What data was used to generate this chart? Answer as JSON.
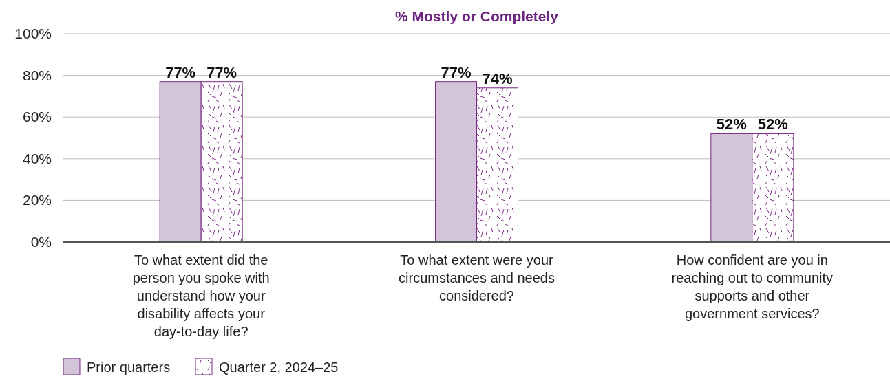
{
  "chart_data": {
    "type": "bar",
    "title": "% Mostly or Completely",
    "categories": [
      "To what extent did the person you spoke with understand how your disability affects your day-to-day life?",
      "To what extent were your circumstances and needs considered?",
      "How confident are you in reaching out to community supports and other government services?"
    ],
    "series": [
      {
        "name": "Prior quarters",
        "color": "#d3c4d9",
        "values": [
          77,
          77,
          52
        ],
        "value_labels": [
          "77%",
          "77%",
          "52%"
        ]
      },
      {
        "name": "Quarter 2, 2024–25",
        "color": "#7b2a86",
        "values": [
          77,
          74,
          52
        ],
        "value_labels": [
          "77%",
          "74%",
          "52%"
        ]
      }
    ],
    "ylim": [
      0,
      100
    ],
    "yticks": [
      {
        "value": 0,
        "label": "0%"
      },
      {
        "value": 20,
        "label": "20%"
      },
      {
        "value": 40,
        "label": "40%"
      },
      {
        "value": 60,
        "label": "60%"
      },
      {
        "value": 80,
        "label": "80%"
      },
      {
        "value": 100,
        "label": "100%"
      }
    ],
    "grid": "y",
    "legend": "bottom left"
  }
}
